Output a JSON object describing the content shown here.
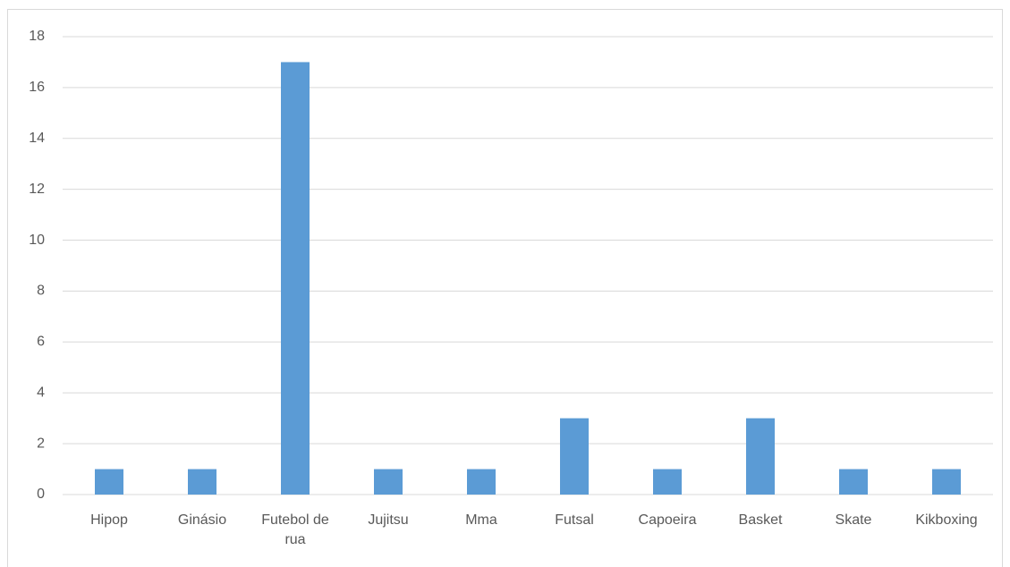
{
  "chart_data": {
    "type": "bar",
    "categories": [
      "Hipop",
      "Ginásio",
      "Futebol de rua",
      "Jujitsu",
      "Mma",
      "Futsal",
      "Capoeira",
      "Basket",
      "Skate",
      "Kikboxing"
    ],
    "values": [
      1,
      1,
      17,
      1,
      1,
      3,
      1,
      3,
      1,
      1
    ],
    "color": "#5b9bd5",
    "ylim": [
      0,
      18
    ],
    "yticks": [
      0,
      2,
      4,
      6,
      8,
      10,
      12,
      14,
      16,
      18
    ],
    "grid": true
  }
}
